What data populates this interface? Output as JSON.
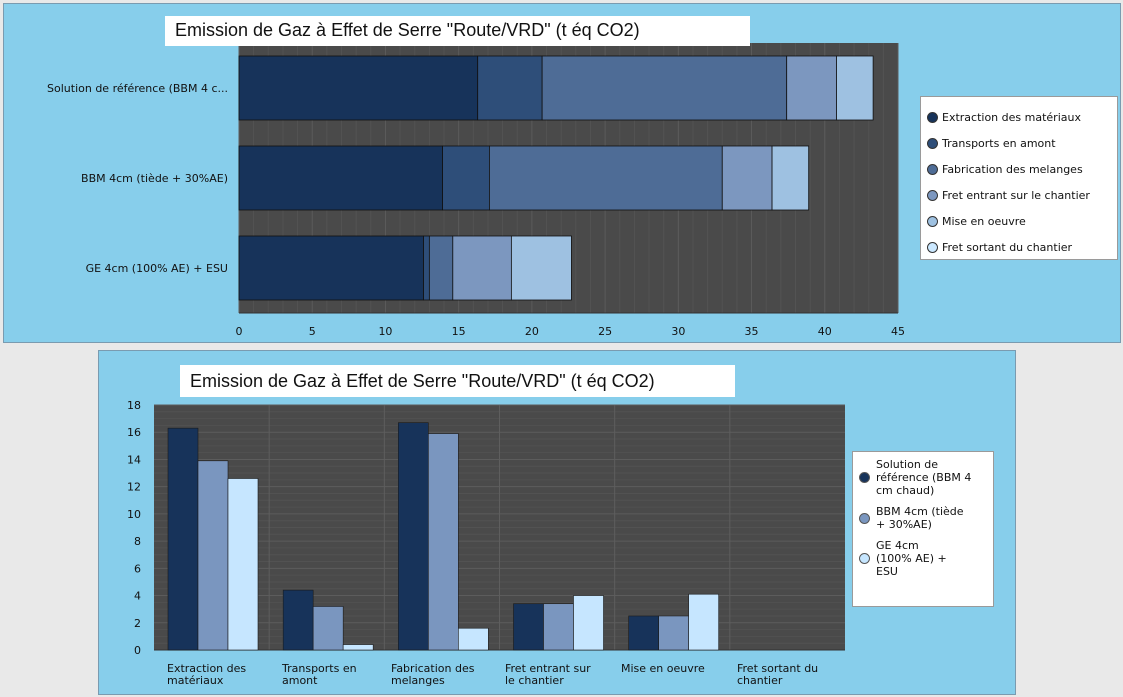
{
  "chart_data": [
    {
      "type": "bar",
      "orientation": "horizontal",
      "stacked": true,
      "title": "Emission de Gaz à Effet de Serre \"Route/VRD\" (t éq CO2)",
      "categories": [
        "Solution de référence (BBM 4 c...",
        "BBM 4cm (tiède + 30%AE)",
        "GE 4cm (100% AE) + ESU"
      ],
      "series": [
        {
          "name": "Extraction des matériaux",
          "values": [
            16.3,
            13.9,
            12.6
          ]
        },
        {
          "name": "Transports en amont",
          "values": [
            4.4,
            3.2,
            0.4
          ]
        },
        {
          "name": "Fabrication des melanges",
          "values": [
            16.7,
            15.9,
            1.6
          ]
        },
        {
          "name": "Fret entrant sur le chantier",
          "values": [
            3.4,
            3.4,
            4.0
          ]
        },
        {
          "name": "Mise en oeuvre",
          "values": [
            2.5,
            2.5,
            4.1
          ]
        },
        {
          "name": "Fret sortant du chantier",
          "values": [
            0,
            0,
            0
          ]
        }
      ],
      "colors": [
        "#17335a",
        "#2e4e79",
        "#4e6c96",
        "#7c97bf",
        "#9ec1e1",
        "#cbe8ff"
      ],
      "xlim": [
        0,
        45
      ],
      "xticks": [
        0,
        5,
        10,
        15,
        20,
        25,
        30,
        35,
        40,
        45
      ],
      "legend_position": "right",
      "grid": true
    },
    {
      "type": "bar",
      "orientation": "vertical",
      "stacked": false,
      "title": "Emission de Gaz à Effet de Serre \"Route/VRD\" (t éq CO2)",
      "categories": [
        [
          "Extraction des",
          "matériaux"
        ],
        [
          "Transports en",
          "amont"
        ],
        [
          "Fabrication des",
          "melanges"
        ],
        [
          "Fret entrant sur",
          "le chantier"
        ],
        [
          "Mise en oeuvre",
          ""
        ],
        [
          "Fret sortant du",
          "chantier"
        ]
      ],
      "series": [
        {
          "name": [
            "Solution de",
            "référence (BBM 4",
            "cm chaud)"
          ],
          "values": [
            16.3,
            4.4,
            16.7,
            3.4,
            2.5,
            0
          ]
        },
        {
          "name": [
            "BBM 4cm (tiède",
            "+ 30%AE)"
          ],
          "values": [
            13.9,
            3.2,
            15.9,
            3.4,
            2.5,
            0
          ]
        },
        {
          "name": [
            "GE 4cm",
            "(100% AE) +",
            "ESU"
          ],
          "values": [
            12.6,
            0.4,
            1.6,
            4.0,
            4.1,
            0
          ]
        }
      ],
      "colors": [
        "#17335a",
        "#7a96bf",
        "#c6e6ff"
      ],
      "ylim": [
        0,
        18
      ],
      "yticks": [
        0,
        2,
        4,
        6,
        8,
        10,
        12,
        14,
        16,
        18
      ],
      "legend_position": "right",
      "grid": true
    }
  ]
}
